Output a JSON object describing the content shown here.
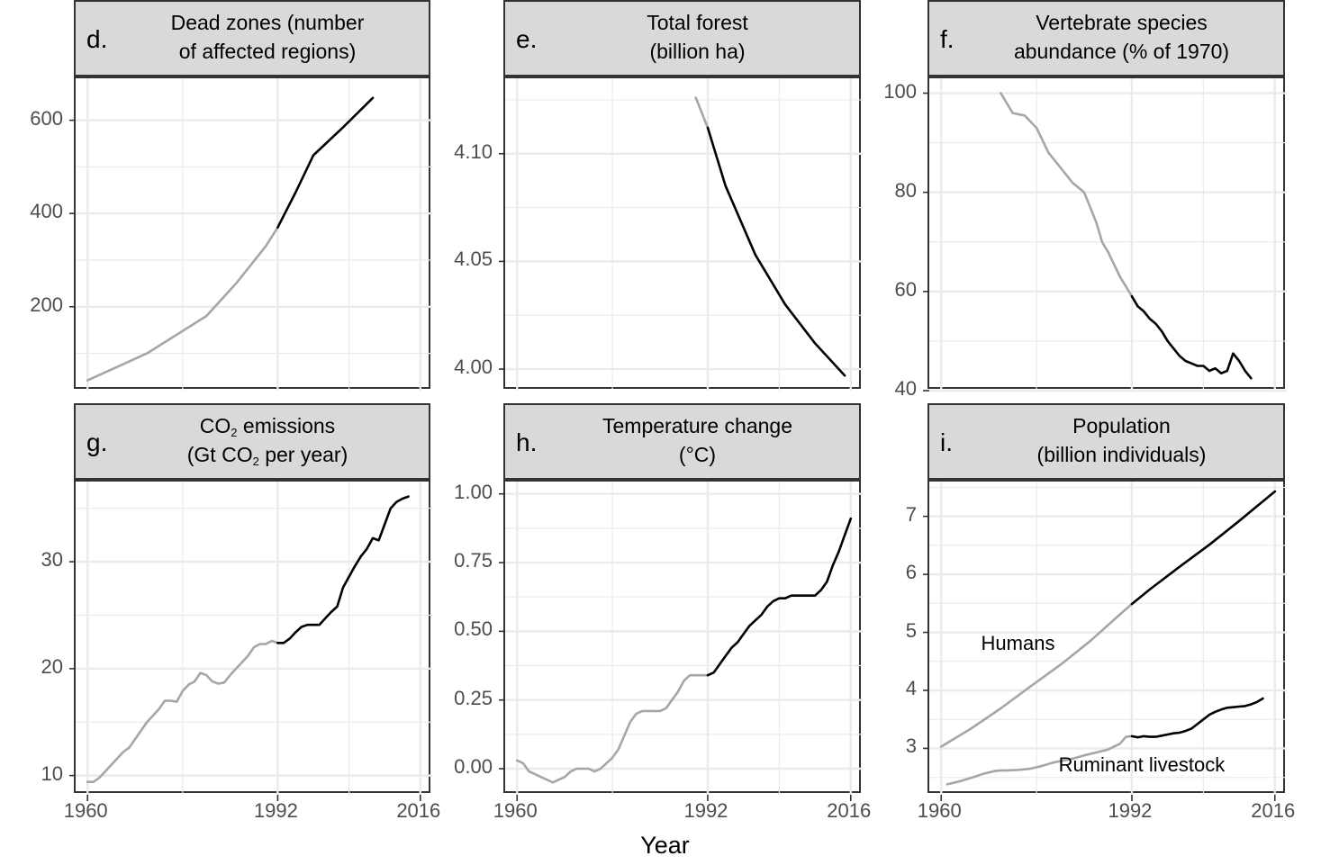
{
  "x_axis_title": "Year",
  "colors": {
    "historical": "#a6a6a6",
    "recent": "#000000",
    "grid": "#ebebeb",
    "strip_bg": "#d9d9d9"
  },
  "chart_data": [
    {
      "id": "d",
      "type": "line",
      "letter": "d.",
      "title_lines": [
        "Dead zones (number",
        "of affected regions)"
      ],
      "xlim": [
        1958,
        2018
      ],
      "ylim": [
        20,
        690
      ],
      "xticks": [
        1960,
        1992,
        2016
      ],
      "yticks": [
        200,
        400,
        600
      ],
      "split_year": 1992,
      "series": [
        {
          "x": [
            1960,
            1970,
            1980,
            1985,
            1990,
            1992,
            1995,
            1998,
            2003,
            2008
          ],
          "y": [
            42,
            100,
            180,
            250,
            330,
            370,
            445,
            525,
            585,
            648
          ]
        }
      ]
    },
    {
      "id": "e",
      "type": "line",
      "letter": "e.",
      "title_lines": [
        "Total forest",
        "(billion ha)"
      ],
      "xlim": [
        1958,
        2018
      ],
      "ylim": [
        3.99,
        4.135
      ],
      "xticks": [
        1960,
        1992,
        2016
      ],
      "yticks": [
        4.0,
        4.05,
        4.1
      ],
      "ytick_labels": [
        "4.00",
        "4.05",
        "4.10"
      ],
      "split_year": 1992,
      "series": [
        {
          "x": [
            1990,
            1992,
            1995,
            2000,
            2005,
            2010,
            2015
          ],
          "y": [
            4.126,
            4.112,
            4.085,
            4.053,
            4.03,
            4.012,
            3.997
          ]
        }
      ]
    },
    {
      "id": "f",
      "type": "line",
      "letter": "f.",
      "title_lines": [
        "Vertebrate species",
        "abundance (% of 1970)"
      ],
      "xlim": [
        1958,
        2018
      ],
      "ylim": [
        40,
        103
      ],
      "xticks": [
        1960,
        1992,
        2016
      ],
      "yticks": [
        40,
        60,
        80,
        100
      ],
      "split_year": 1992,
      "series": [
        {
          "x": [
            1970,
            1972,
            1974,
            1976,
            1978,
            1980,
            1982,
            1984,
            1986,
            1987,
            1988,
            1990,
            1992,
            1993,
            1994,
            1995,
            1996,
            1997,
            1998,
            1999,
            2000,
            2001,
            2002,
            2003,
            2004,
            2005,
            2006,
            2007,
            2008,
            2009,
            2010,
            2011,
            2012
          ],
          "y": [
            100,
            96,
            95.5,
            93,
            88,
            85,
            82,
            80,
            74,
            70,
            68,
            63,
            59,
            57,
            56,
            54.5,
            53.5,
            52,
            50,
            48.5,
            47,
            46,
            45.5,
            45,
            45,
            44,
            44.5,
            43.5,
            44,
            47.5,
            46,
            44,
            42.5
          ]
        }
      ]
    },
    {
      "id": "g",
      "type": "line",
      "letter": "g.",
      "title_lines": [
        "CO2 emissions",
        "(Gt CO2 per year)"
      ],
      "xlim": [
        1958,
        2018
      ],
      "ylim": [
        8.2,
        37.5
      ],
      "xticks": [
        1960,
        1992,
        2016
      ],
      "yticks": [
        10,
        20,
        30
      ],
      "split_year": 1992,
      "series": [
        {
          "x": [
            1960,
            1961,
            1962,
            1963,
            1964,
            1965,
            1966,
            1967,
            1968,
            1969,
            1970,
            1971,
            1972,
            1973,
            1974,
            1975,
            1976,
            1977,
            1978,
            1979,
            1980,
            1981,
            1982,
            1983,
            1984,
            1985,
            1986,
            1987,
            1988,
            1989,
            1990,
            1991,
            1992,
            1993,
            1994,
            1995,
            1996,
            1997,
            1998,
            1999,
            2000,
            2001,
            2002,
            2003,
            2004,
            2005,
            2006,
            2007,
            2008,
            2009,
            2010,
            2011,
            2012,
            2013,
            2014
          ],
          "y": [
            9.4,
            9.4,
            9.8,
            10.4,
            11,
            11.6,
            12.2,
            12.6,
            13.4,
            14.2,
            15,
            15.6,
            16.2,
            17,
            17,
            16.9,
            17.9,
            18.5,
            18.8,
            19.6,
            19.4,
            18.8,
            18.6,
            18.7,
            19.4,
            20,
            20.6,
            21.2,
            22,
            22.3,
            22.3,
            22.6,
            22.4,
            22.4,
            22.8,
            23.4,
            23.9,
            24.1,
            24.1,
            24.1,
            24.7,
            25.3,
            25.8,
            27.6,
            28.6,
            29.6,
            30.5,
            31.2,
            32.2,
            32,
            33.5,
            35,
            35.6,
            35.9,
            36.1
          ]
        }
      ]
    },
    {
      "id": "h",
      "type": "line",
      "letter": "h.",
      "title_lines": [
        "Temperature change",
        "(°C)"
      ],
      "xlim": [
        1958,
        2018
      ],
      "ylim": [
        -0.095,
        1.045
      ],
      "xticks": [
        1960,
        1992,
        2016
      ],
      "yticks": [
        0,
        0.25,
        0.5,
        0.75,
        1.0
      ],
      "ytick_labels": [
        "0.00",
        "0.25",
        "0.50",
        "0.75",
        "1.00"
      ],
      "split_year": 1992,
      "series": [
        {
          "x": [
            1960,
            1961,
            1962,
            1963,
            1964,
            1965,
            1966,
            1967,
            1968,
            1969,
            1970,
            1971,
            1972,
            1973,
            1974,
            1975,
            1976,
            1977,
            1978,
            1979,
            1980,
            1981,
            1982,
            1983,
            1984,
            1985,
            1986,
            1987,
            1988,
            1989,
            1990,
            1991,
            1992,
            1993,
            1994,
            1995,
            1996,
            1997,
            1998,
            1999,
            2000,
            2001,
            2002,
            2003,
            2004,
            2005,
            2006,
            2007,
            2008,
            2009,
            2010,
            2011,
            2012,
            2013,
            2014,
            2015,
            2016
          ],
          "y": [
            0.03,
            0.02,
            -0.01,
            -0.02,
            -0.03,
            -0.04,
            -0.05,
            -0.04,
            -0.03,
            -0.01,
            0,
            0,
            0,
            -0.01,
            0,
            0.02,
            0.04,
            0.07,
            0.12,
            0.17,
            0.2,
            0.21,
            0.21,
            0.21,
            0.21,
            0.22,
            0.25,
            0.28,
            0.32,
            0.34,
            0.34,
            0.34,
            0.34,
            0.35,
            0.38,
            0.41,
            0.44,
            0.46,
            0.49,
            0.52,
            0.54,
            0.56,
            0.59,
            0.61,
            0.62,
            0.62,
            0.63,
            0.63,
            0.63,
            0.63,
            0.63,
            0.65,
            0.68,
            0.74,
            0.79,
            0.85,
            0.91
          ]
        }
      ]
    },
    {
      "id": "i",
      "type": "line",
      "letter": "i.",
      "title_lines": [
        "Population",
        "(billion individuals)"
      ],
      "xlim": [
        1958,
        2018
      ],
      "ylim": [
        2.2,
        7.6
      ],
      "xticks": [
        1960,
        1992,
        2016
      ],
      "yticks": [
        3,
        4,
        5,
        6,
        7
      ],
      "split_year": 1992,
      "annotations": [
        "Humans",
        "Ruminant livestock"
      ],
      "series": [
        {
          "name": "Humans",
          "x": [
            1960,
            1965,
            1970,
            1975,
            1980,
            1985,
            1990,
            1992,
            1995,
            2000,
            2005,
            2010,
            2016
          ],
          "y": [
            3.03,
            3.34,
            3.69,
            4.07,
            4.44,
            4.85,
            5.31,
            5.49,
            5.74,
            6.13,
            6.51,
            6.92,
            7.43
          ]
        },
        {
          "name": "Ruminant livestock",
          "x": [
            1961,
            1963,
            1965,
            1967,
            1969,
            1970,
            1971,
            1973,
            1975,
            1977,
            1979,
            1980,
            1982,
            1984,
            1986,
            1988,
            1990,
            1991,
            1992,
            1993,
            1994,
            1995,
            1996,
            1997,
            1998,
            1999,
            2000,
            2001,
            2002,
            2003,
            2004,
            2005,
            2006,
            2007,
            2008,
            2009,
            2010,
            2011,
            2012,
            2013,
            2014
          ],
          "y": [
            2.38,
            2.43,
            2.49,
            2.56,
            2.61,
            2.62,
            2.62,
            2.63,
            2.65,
            2.7,
            2.76,
            2.78,
            2.82,
            2.88,
            2.93,
            2.98,
            3.08,
            3.2,
            3.21,
            3.19,
            3.21,
            3.2,
            3.2,
            3.22,
            3.24,
            3.26,
            3.27,
            3.3,
            3.34,
            3.42,
            3.5,
            3.58,
            3.63,
            3.67,
            3.7,
            3.71,
            3.72,
            3.73,
            3.76,
            3.8,
            3.86
          ]
        }
      ]
    }
  ]
}
